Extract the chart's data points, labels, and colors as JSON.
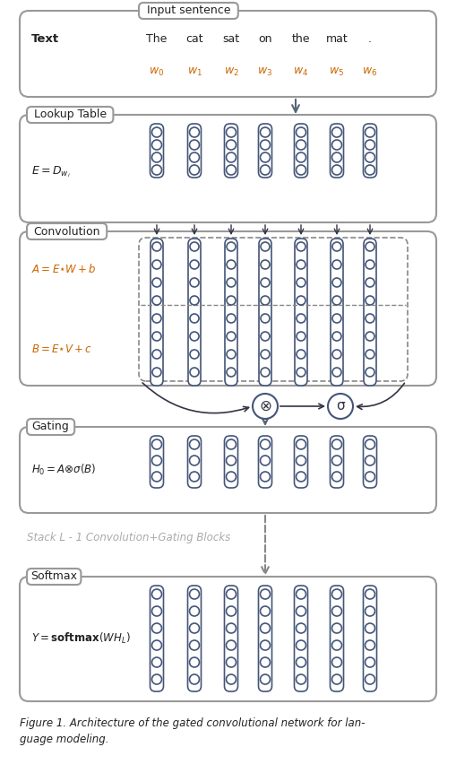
{
  "bg_color": "#ffffff",
  "border_color": "#999999",
  "dark_border": "#556677",
  "orange_color": "#cc6600",
  "gray_color": "#aaaaaa",
  "fig_w": 5.09,
  "fig_h": 8.72,
  "dpi": 100,
  "words": [
    "The",
    "cat",
    "sat",
    "on",
    "the",
    "mat",
    "."
  ],
  "w_labels": [
    "w_0",
    "w_1",
    "w_2",
    "w_3",
    "w_4",
    "w_5",
    "w_6"
  ],
  "figure_caption_line1": "Figure 1. Architecture of the gated convolutional network for lan-",
  "figure_caption_line2": "guage modeling."
}
